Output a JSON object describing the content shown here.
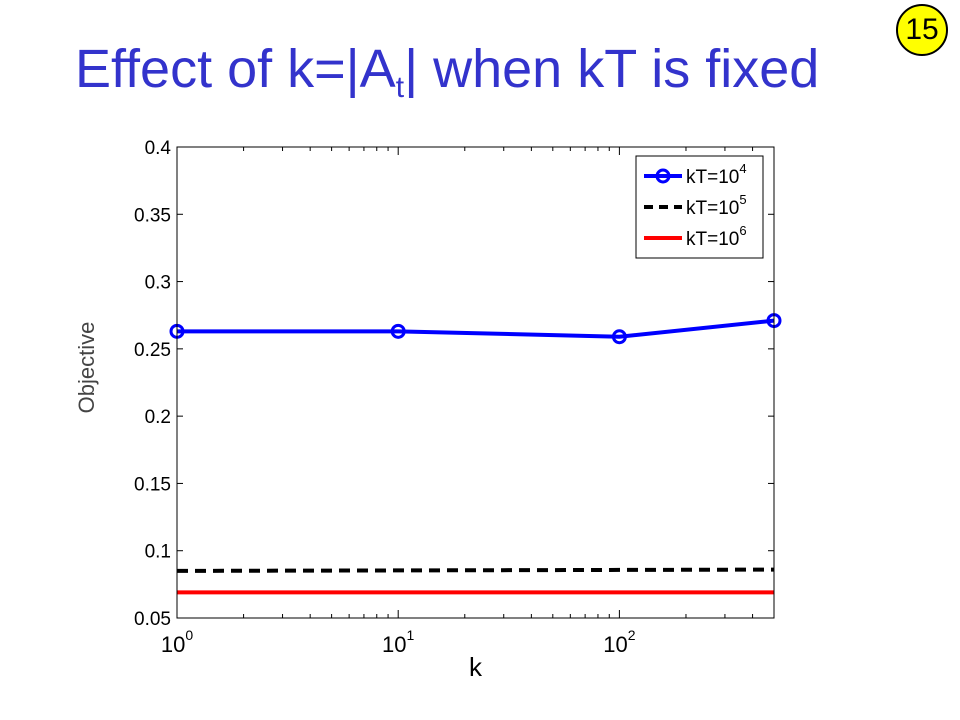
{
  "slide": {
    "title_main": "Effect of k=|A",
    "title_sub": "t",
    "title_rest": "| when kT is fixed",
    "page_number": "15"
  },
  "chart_data": {
    "type": "line",
    "xscale": "log",
    "xlim": [
      1,
      500
    ],
    "ylim": [
      0.05,
      0.4
    ],
    "xlabel": "k",
    "ylabel": "Objective",
    "grid": false,
    "legend_position": "top-right",
    "x_ticks": [
      1,
      10,
      100
    ],
    "x_tick_labels": [
      {
        "base": "10",
        "exp": "0"
      },
      {
        "base": "10",
        "exp": "1"
      },
      {
        "base": "10",
        "exp": "2"
      }
    ],
    "y_ticks": [
      0.05,
      0.1,
      0.15,
      0.2,
      0.25,
      0.3,
      0.35,
      0.4
    ],
    "y_tick_labels": [
      "0.05",
      "0.1",
      "0.15",
      "0.2",
      "0.25",
      "0.3",
      "0.35",
      "0.4"
    ],
    "series": [
      {
        "legend_base": "kT=10",
        "legend_exp": "4",
        "color": "#0000ff",
        "dash": "solid",
        "marker": "circle",
        "x": [
          1,
          10,
          100,
          500
        ],
        "y": [
          0.263,
          0.263,
          0.259,
          0.271
        ]
      },
      {
        "legend_base": "kT=10",
        "legend_exp": "5",
        "color": "#000000",
        "dash": "dashed",
        "marker": "none",
        "x": [
          1,
          500
        ],
        "y": [
          0.085,
          0.086
        ]
      },
      {
        "legend_base": "kT=10",
        "legend_exp": "6",
        "color": "#ff0000",
        "dash": "solid",
        "marker": "none",
        "x": [
          1,
          500
        ],
        "y": [
          0.069,
          0.069
        ]
      }
    ]
  }
}
